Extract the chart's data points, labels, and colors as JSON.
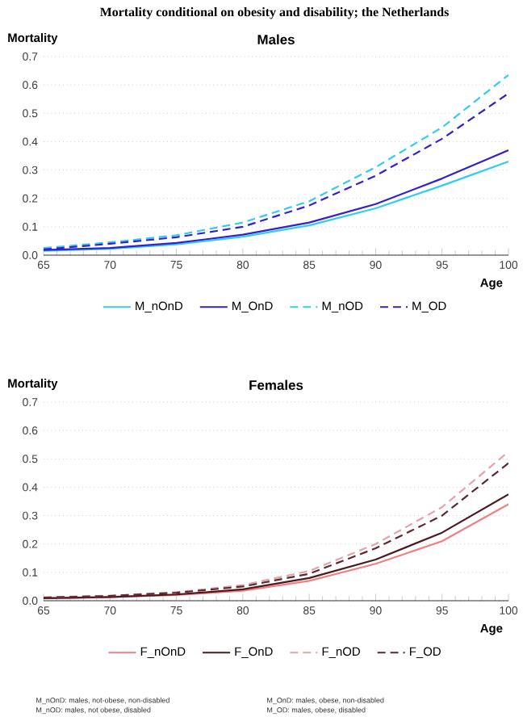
{
  "chart_data": [
    {
      "type": "line",
      "title": "Males",
      "xlabel": "Age",
      "ylabel": "Mortality",
      "annotations": [
        "Mortality conditional on obesity and disability; the Netherlands"
      ],
      "x": [
        65,
        70,
        75,
        80,
        85,
        90,
        95,
        100
      ],
      "series": [
        {
          "name": "M_nOnD",
          "color": "#33ccee",
          "line_style": "solid",
          "values": [
            0.015,
            0.022,
            0.038,
            0.065,
            0.105,
            0.165,
            0.245,
            0.33
          ]
        },
        {
          "name": "M_OnD",
          "color": "#3322cc",
          "line_style": "solid",
          "values": [
            0.018,
            0.025,
            0.043,
            0.072,
            0.115,
            0.18,
            0.27,
            0.37
          ]
        },
        {
          "name": "M_nOD",
          "color": "#33ccee",
          "line_style": "dashed",
          "values": [
            0.025,
            0.045,
            0.07,
            0.115,
            0.19,
            0.31,
            0.45,
            0.635
          ]
        },
        {
          "name": "M_OD",
          "color": "#3322cc",
          "line_style": "dashed",
          "values": [
            0.02,
            0.04,
            0.063,
            0.1,
            0.175,
            0.28,
            0.41,
            0.57
          ]
        }
      ],
      "xlim": [
        65,
        100
      ],
      "xticks": [
        65,
        70,
        75,
        80,
        85,
        90,
        95,
        100
      ],
      "ylim": [
        0,
        0.7
      ],
      "yticks": [
        {
          "value": 0,
          "label": "0.0"
        },
        0.1,
        0.2,
        0.3,
        0.4,
        0.5,
        0.6,
        0.7
      ],
      "grid": "y",
      "legend": "bottom"
    },
    {
      "type": "line",
      "title": "Females",
      "xlabel": "Age",
      "ylabel": "Mortality",
      "annotations": [
        "M_nOnD: males, not-obese, non-disabled",
        "M_OnD: males, obese, non-disabled",
        "M_nOD: males, not obese, disabled",
        "M_OD: males, obese, disabled"
      ],
      "x": [
        65,
        70,
        75,
        80,
        85,
        90,
        95,
        100
      ],
      "series": [
        {
          "name": "F_nOnD",
          "color": "#f08080",
          "line_style": "solid",
          "values": [
            0.008,
            0.012,
            0.02,
            0.035,
            0.07,
            0.13,
            0.21,
            0.34
          ]
        },
        {
          "name": "F_OnD",
          "color": "#4a1a20",
          "line_style": "solid",
          "values": [
            0.009,
            0.013,
            0.022,
            0.04,
            0.08,
            0.145,
            0.24,
            0.375
          ]
        },
        {
          "name": "F_nOD",
          "color": "#e8a0a8",
          "line_style": "dashed",
          "values": [
            0.012,
            0.018,
            0.03,
            0.055,
            0.105,
            0.2,
            0.33,
            0.525
          ]
        },
        {
          "name": "F_OD",
          "color": "#5a2a30",
          "line_style": "dashed",
          "values": [
            0.011,
            0.017,
            0.028,
            0.05,
            0.095,
            0.185,
            0.3,
            0.485
          ]
        }
      ],
      "xlim": [
        65,
        100
      ],
      "xticks": [
        65,
        70,
        75,
        80,
        85,
        90,
        95,
        100
      ],
      "ylim": [
        0,
        0.7
      ],
      "yticks": [
        {
          "value": 0,
          "label": "0.0"
        },
        0.1,
        0.2,
        0.3,
        0.4,
        0.5,
        0.6,
        0.7
      ],
      "grid": "y",
      "legend": "bottom"
    }
  ]
}
